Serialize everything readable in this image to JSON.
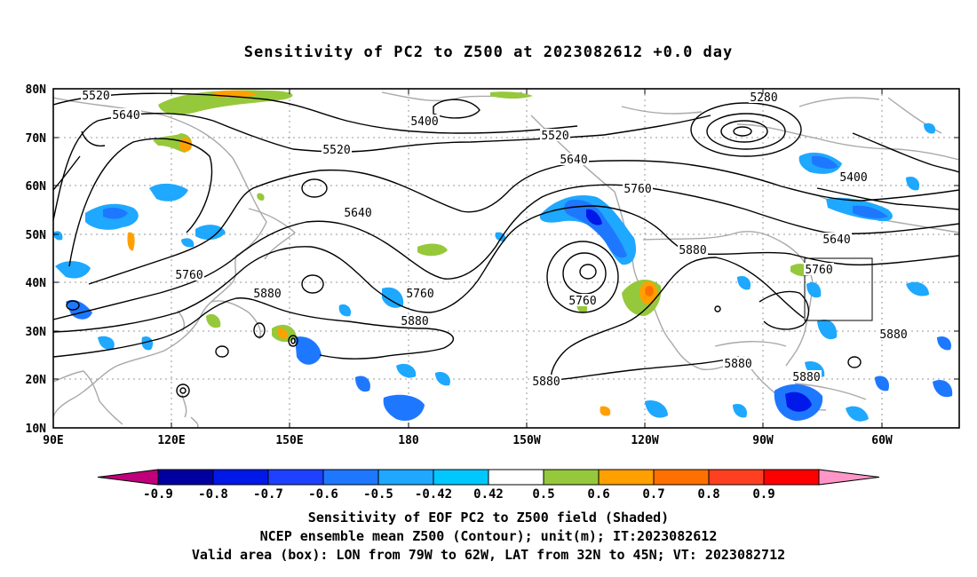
{
  "title": "Sensitivity of PC2 to Z500 at 2023082612 +0.0 day",
  "map": {
    "lat_labels": [
      "80N",
      "70N",
      "60N",
      "50N",
      "40N",
      "30N",
      "20N",
      "10N"
    ],
    "lon_labels": [
      "90E",
      "120E",
      "150E",
      "180",
      "150W",
      "120W",
      "90W",
      "60W"
    ],
    "contour_labels": [
      {
        "text": "5520",
        "id": "5520-west"
      },
      {
        "text": "5640",
        "id": "5640-west"
      },
      {
        "text": "5400",
        "id": "5400-pacific"
      },
      {
        "text": "5520",
        "id": "5520-pacific"
      },
      {
        "text": "5520",
        "id": "5520-canada"
      },
      {
        "text": "5280",
        "id": "5280-arctic"
      },
      {
        "text": "5640",
        "id": "5640-canada"
      },
      {
        "text": "5760",
        "id": "5760-canada"
      },
      {
        "text": "5400",
        "id": "5400-atlantic"
      },
      {
        "text": "5640",
        "id": "5640-pacific"
      },
      {
        "text": "5760",
        "id": "5760-asia"
      },
      {
        "text": "5880",
        "id": "5880-japan"
      },
      {
        "text": "5760",
        "id": "5760-pacific"
      },
      {
        "text": "5880",
        "id": "5880-pacific"
      },
      {
        "text": "5760",
        "id": "5760-low"
      },
      {
        "text": "5880",
        "id": "5880-us"
      },
      {
        "text": "5640",
        "id": "5640-atlantic"
      },
      {
        "text": "5760",
        "id": "5760-atlantic"
      },
      {
        "text": "5880",
        "id": "5880-atlantic"
      },
      {
        "text": "5880",
        "id": "5880-gulf"
      },
      {
        "text": "5880",
        "id": "5880-caribbean"
      },
      {
        "text": "5880",
        "id": "5880-south"
      }
    ],
    "valid_box": {
      "lon_from": "79W",
      "lon_to": "62W",
      "lat_from": "32N",
      "lat_to": "45N"
    }
  },
  "colorbar": {
    "labels": [
      "-0.9",
      "-0.8",
      "-0.7",
      "-0.6",
      "-0.5",
      "-0.42",
      "0.42",
      "0.5",
      "0.6",
      "0.7",
      "0.8",
      "0.9"
    ],
    "colors": [
      "#c0007a",
      "#0000a0",
      "#0018e8",
      "#1e40ff",
      "#1e78ff",
      "#1ea8ff",
      "#00c8ff",
      "#ffffff",
      "#96c83c",
      "#ffa000",
      "#ff7000",
      "#ff4020",
      "#ff0000",
      "#ff96c8"
    ]
  },
  "footer": {
    "line1": "Sensitivity of EOF PC2 to Z500 field (Shaded)",
    "line2": "NCEP ensemble mean Z500 (Contour); unit(m); IT:2023082612",
    "line3": "Valid area (box): LON from 79W to 62W, LAT from 32N to 45N; VT: 2023082712"
  }
}
